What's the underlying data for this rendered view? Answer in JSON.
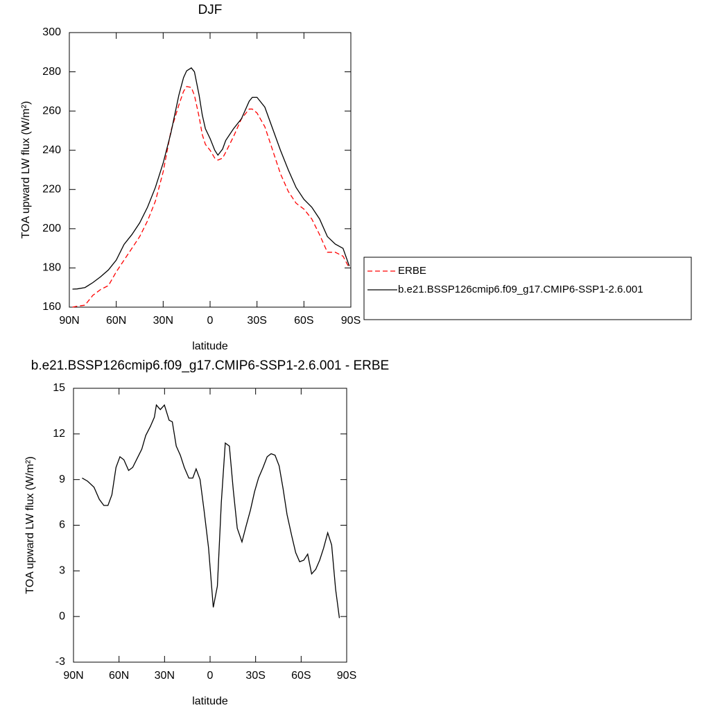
{
  "chart_data": [
    {
      "type": "line",
      "title": "DJF",
      "x_label": "latitude",
      "y_label": "TOA upward LW flux (W/m²)",
      "x": [
        88,
        85,
        80,
        75,
        70,
        65,
        60,
        55,
        50,
        45,
        40,
        35,
        30,
        25,
        20,
        17,
        15,
        12,
        10,
        7,
        5,
        3,
        0,
        -3,
        -5,
        -8,
        -10,
        -15,
        -20,
        -25,
        -27,
        -30,
        -35,
        -40,
        -45,
        -50,
        -55,
        -60,
        -65,
        -70,
        -75,
        -80,
        -85,
        -89
      ],
      "series": [
        {
          "name": "ERBE",
          "color": "#ff0000",
          "dashed": true,
          "values": [
            160,
            160.5,
            161,
            166,
            169,
            171,
            178,
            184,
            190,
            196,
            204,
            214,
            229,
            250,
            263,
            270,
            272.5,
            272,
            268,
            257,
            248,
            243,
            240,
            236,
            235,
            236,
            239,
            247,
            256,
            261,
            261,
            259,
            252,
            240,
            228,
            219,
            213,
            210,
            205,
            197,
            188,
            188,
            186,
            180
          ]
        },
        {
          "name": "b.e21.BSSP126cmip6.f09_g17.CMIP6-SSP1-2.6.001",
          "color": "#000000",
          "dashed": false,
          "values": [
            169.2,
            169.3,
            170,
            172.5,
            175.5,
            179,
            184,
            192,
            197,
            203,
            211,
            221,
            233.5,
            249,
            268,
            277,
            280.5,
            282,
            280,
            268,
            258,
            251,
            246,
            240,
            237.5,
            240.6,
            245,
            251,
            256,
            265,
            267,
            267,
            262,
            251,
            240,
            230,
            221,
            215,
            211,
            205,
            196,
            192.2,
            190,
            181
          ]
        }
      ],
      "xlim": [
        90,
        -90
      ],
      "xticks": [
        {
          "value": 90,
          "label": "90N"
        },
        {
          "value": 60,
          "label": "60N"
        },
        {
          "value": 30,
          "label": "30N"
        },
        0,
        {
          "value": -30,
          "label": "30S"
        },
        {
          "value": -60,
          "label": "60S"
        },
        {
          "value": -90,
          "label": "90S"
        }
      ],
      "ylim": [
        160,
        300
      ],
      "yticks": [
        160,
        180,
        200,
        220,
        240,
        260,
        280,
        300
      ],
      "legend": "right"
    },
    {
      "type": "line",
      "title": "b.e21.BSSP126cmip6.f09_g17.CMIP6-SSP1-2.6.001 - ERBE",
      "x_label": "latitude",
      "y_label": "TOA upward LW flux (W/m²)",
      "x": [
        84.3,
        80.8,
        76.5,
        73,
        70,
        67.3,
        64.7,
        62,
        59.4,
        56.8,
        53.7,
        51,
        48,
        45,
        42.4,
        39.3,
        36.7,
        35.4,
        32.8,
        30.1,
        27,
        24.9,
        22.3,
        19.6,
        17,
        14,
        11.4,
        9.2,
        6.6,
        4,
        1,
        -2.1,
        -4.8,
        -7.4,
        -10,
        -12.7,
        -15.3,
        -17.9,
        -21,
        -23.6,
        -26.6,
        -29.3,
        -31.9,
        -34.9,
        -37.6,
        -40.2,
        -42.8,
        -45.5,
        -48.1,
        -50.7,
        -53.8,
        -56.4,
        -59,
        -61.7,
        -64.3,
        -66.9,
        -69.6,
        -72.2,
        -74.8,
        -77.5,
        -80.1,
        -82.7,
        -85.2
      ],
      "values": [
        9.1,
        8.9,
        8.5,
        7.7,
        7.3,
        7.3,
        8.0,
        9.8,
        10.5,
        10.3,
        9.6,
        9.8,
        10.4,
        11.0,
        11.9,
        12.5,
        13.1,
        13.9,
        13.6,
        13.9,
        12.9,
        12.8,
        11.2,
        10.6,
        9.8,
        9.1,
        9.1,
        9.7,
        9.0,
        7.0,
        4.5,
        0.6,
        2.0,
        7.5,
        11.4,
        11.2,
        8.3,
        5.8,
        4.9,
        5.9,
        7.0,
        8.2,
        9.1,
        9.8,
        10.5,
        10.7,
        10.6,
        9.9,
        8.4,
        6.7,
        5.3,
        4.2,
        3.6,
        3.7,
        4.1,
        2.8,
        3.1,
        3.7,
        4.5,
        5.5,
        4.7,
        1.8,
        -0.1
      ],
      "color": "#000000",
      "xlim": [
        90,
        -90
      ],
      "xticks": [
        {
          "value": 90,
          "label": "90N"
        },
        {
          "value": 60,
          "label": "60N"
        },
        {
          "value": 30,
          "label": "30N"
        },
        0,
        {
          "value": -30,
          "label": "30S"
        },
        {
          "value": -60,
          "label": "60S"
        },
        {
          "value": -90,
          "label": "90S"
        }
      ],
      "ylim": [
        -3,
        15
      ],
      "yticks": [
        -3,
        0,
        3,
        6,
        9,
        12,
        15
      ]
    }
  ]
}
